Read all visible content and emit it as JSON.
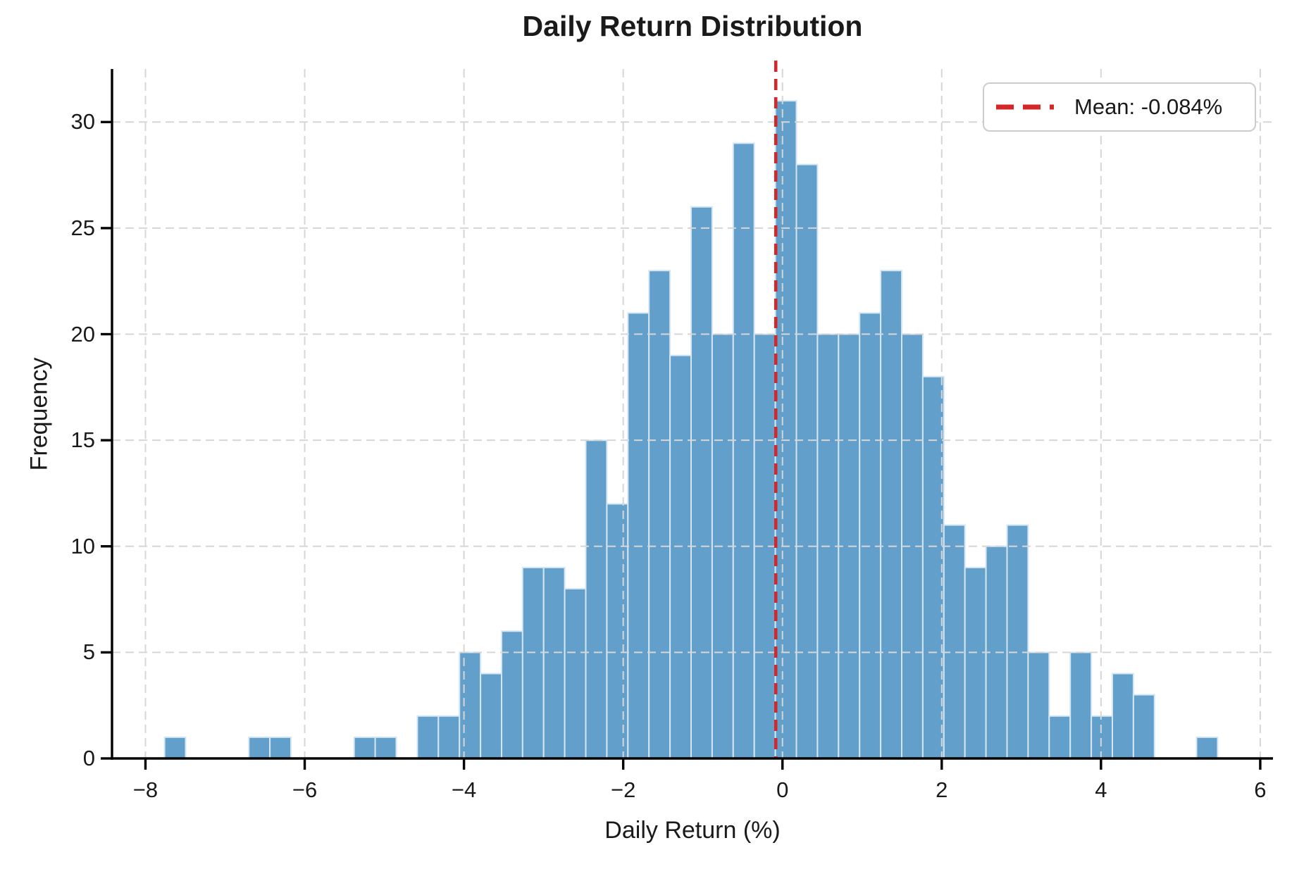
{
  "figure": {
    "title": "Daily Return Distribution",
    "xlabel": "Daily Return (%)",
    "ylabel": "Frequency",
    "legend": {
      "label": "Mean: -0.084%"
    }
  },
  "chart_data": {
    "type": "bar",
    "subtype": "histogram",
    "title": "Daily Return Distribution",
    "xlabel": "Daily Return (%)",
    "ylabel": "Frequency",
    "bin_start": -7.76,
    "bin_width": 0.2645,
    "frequencies": [
      1,
      0,
      0,
      0,
      1,
      1,
      0,
      0,
      0,
      1,
      1,
      0,
      2,
      2,
      5,
      4,
      6,
      9,
      9,
      8,
      15,
      12,
      21,
      23,
      19,
      26,
      20,
      29,
      20,
      31,
      28,
      20,
      20,
      21,
      23,
      20,
      18,
      11,
      9,
      10,
      11,
      5,
      2,
      5,
      2,
      4,
      3,
      0,
      0,
      1
    ],
    "mean": -0.084,
    "mean_label": "Mean: -0.084%",
    "xlim": [
      -8.42,
      6.16
    ],
    "ylim": [
      0,
      32.5
    ],
    "x_ticks": [
      -8,
      -6,
      -4,
      -2,
      0,
      2,
      4,
      6
    ],
    "x_tick_labels": [
      "−8",
      "−6",
      "−4",
      "−2",
      "0",
      "2",
      "4",
      "6"
    ],
    "y_ticks": [
      0,
      5,
      10,
      15,
      20,
      25,
      30
    ],
    "y_tick_labels": [
      "0",
      "5",
      "10",
      "15",
      "20",
      "25",
      "30"
    ],
    "grid": true,
    "grid_style": "dashed",
    "legend_position": "upper right",
    "colors": {
      "bar_fill": "#639fcb",
      "bar_edge": "#d4e6f4",
      "mean_line": "#d62728",
      "grid": "#d6d6d6",
      "spine": "#000000",
      "text": "#1a1a1a",
      "background": "#ffffff"
    }
  }
}
